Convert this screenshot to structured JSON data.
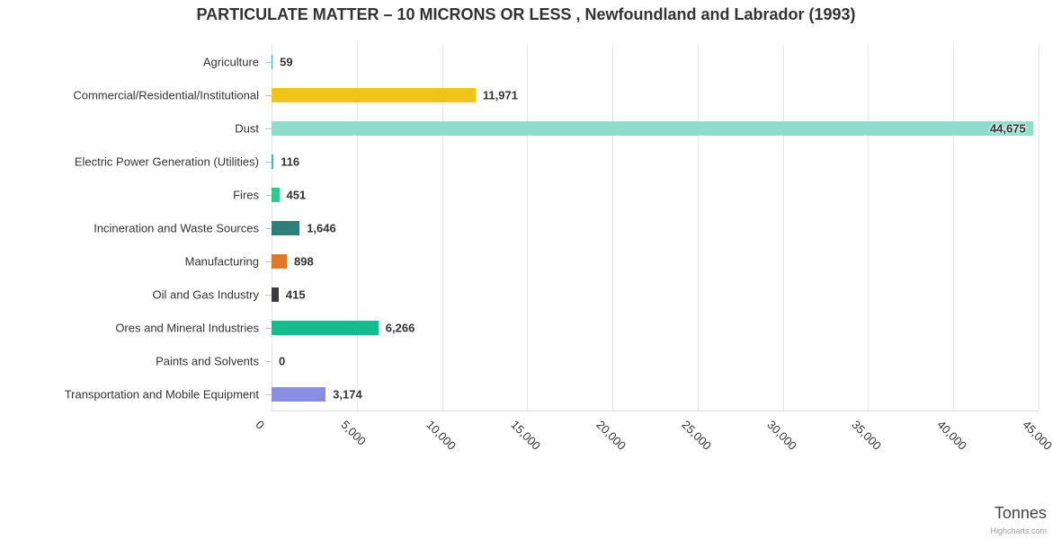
{
  "chart_data": {
    "type": "bar",
    "orientation": "horizontal",
    "title": "PARTICULATE MATTER – 10 MICRONS OR LESS , Newfoundland and Labrador (1993)",
    "categories": [
      "Agriculture",
      "Commercial/Residential/Institutional",
      "Dust",
      "Electric Power Generation (Utilities)",
      "Fires",
      "Incineration and Waste Sources",
      "Manufacturing",
      "Oil and Gas Industry",
      "Ores and Mineral Industries",
      "Paints and Solvents",
      "Transportation and Mobile Equipment"
    ],
    "values": [
      59,
      11971,
      44675,
      116,
      451,
      1646,
      898,
      415,
      6266,
      0,
      3174
    ],
    "value_labels": [
      "59",
      "11,971",
      "44,675",
      "116",
      "451",
      "1,646",
      "898",
      "415",
      "6,266",
      "0",
      "3,174"
    ],
    "colors": [
      "#3AAFA9",
      "#F0C419",
      "#90DCCB",
      "#2EC4A5",
      "#2FC98E",
      "#2E7F7B",
      "#E0772B",
      "#3B3B42",
      "#16BD8C",
      "#BBBBBB",
      "#8A8EE0"
    ],
    "xlabel": "Tonnes",
    "xlim": [
      0,
      45000
    ],
    "x_ticks": [
      0,
      5000,
      10000,
      15000,
      20000,
      25000,
      30000,
      35000,
      40000,
      45000
    ],
    "x_tick_labels": [
      "0",
      "5,000",
      "10,000",
      "15,000",
      "20,000",
      "25,000",
      "30,000",
      "35,000",
      "40,000",
      "45,000"
    ],
    "grid": true,
    "legend": "none",
    "credit": "Highcharts.com"
  }
}
